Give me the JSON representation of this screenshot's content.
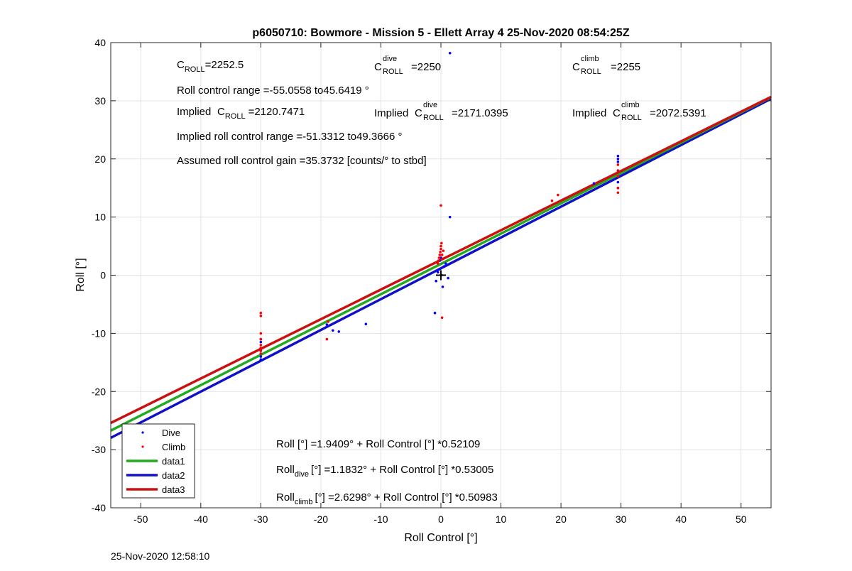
{
  "chart_data": {
    "type": "scatter",
    "title": "p6050710: Bowmore - Mission 5 - Ellett Array 4 25-Nov-2020 08:54:25Z",
    "xlabel": "Roll Control [°]",
    "ylabel": "Roll [°]",
    "xlim": [
      -55,
      55
    ],
    "ylim": [
      -40,
      40
    ],
    "xticks": [
      -50,
      -40,
      -30,
      -20,
      -10,
      0,
      10,
      20,
      30,
      40,
      50
    ],
    "yticks": [
      -40,
      -30,
      -20,
      -10,
      0,
      10,
      20,
      30,
      40
    ],
    "grid": true,
    "legend_position": "bottom-left",
    "colors": {
      "dive": "#0000ff",
      "climb": "#ff0000",
      "data1": "#22aa22",
      "data2": "#1010c8",
      "data3": "#cc1010"
    },
    "series": [
      {
        "name": "Dive",
        "kind": "points",
        "x": [
          -30,
          -30,
          -30,
          -30,
          -30,
          -30,
          -30,
          -19,
          -18,
          -17,
          -12.5,
          -1,
          -0.8,
          -0.5,
          -0.3,
          -0.2,
          0,
          0.1,
          0.3,
          0.5,
          0.8,
          1.2,
          1.5,
          1.5,
          25.5,
          29.5,
          29.5,
          29.5,
          29.5,
          29.5,
          29.5
        ],
        "y": [
          -14.5,
          -14,
          -13.5,
          -13,
          -11.5,
          -11,
          -12.5,
          -8.5,
          -9.5,
          -9.7,
          -8.4,
          -6.5,
          -1,
          0.5,
          1,
          2.5,
          3,
          0,
          -2,
          1.5,
          2,
          -0.5,
          38.2,
          10,
          15.8,
          20.5,
          20,
          19.5,
          18,
          16,
          15
        ]
      },
      {
        "name": "Climb",
        "kind": "points",
        "x": [
          -30,
          -30,
          -30,
          -30,
          -30,
          -30,
          -30,
          -30,
          -19,
          -18.8,
          -0.5,
          -0.4,
          -0.3,
          -0.2,
          -0.1,
          0,
          0,
          0.1,
          0.2,
          0.3,
          0.4,
          0,
          0.2,
          19.5,
          18.5,
          29.5,
          29.5,
          29.5,
          29.5,
          29.5
        ],
        "y": [
          -6.5,
          -7,
          -10,
          -11,
          -12,
          -12.5,
          -13,
          -13.5,
          -11,
          -8,
          2,
          2.5,
          3,
          3.5,
          4,
          4.5,
          5,
          5.5,
          3.5,
          2.8,
          4.2,
          12,
          -7.3,
          13.8,
          12.8,
          19,
          18,
          17,
          15,
          14.2
        ]
      },
      {
        "name": "data1",
        "kind": "line",
        "intercept": 1.9409,
        "slope": 0.52109
      },
      {
        "name": "data2",
        "kind": "line",
        "intercept": 1.1832,
        "slope": 0.53005
      },
      {
        "name": "data3",
        "kind": "line",
        "intercept": 2.6298,
        "slope": 0.50983
      }
    ],
    "marker": {
      "x": 0,
      "y": 0,
      "symbol": "+"
    },
    "annotations": {
      "c_roll": "=2252.5",
      "c_roll_dive": "=2250",
      "c_roll_climb": "=2255",
      "roll_control_range": "Roll control range =-55.0558 to45.6419 °",
      "implied_c_roll": "=2120.7471",
      "implied_c_roll_dive": "=2171.0395",
      "implied_c_roll_climb": "=2072.5391",
      "implied_range": "Implied roll control range =-51.3312 to49.3666 °",
      "gain": "Assumed roll control gain =35.3732 [counts/° to stbd]",
      "fit_all": "Roll [°] =1.9409° + Roll Control [°] *0.52109",
      "fit_dive": "[°] =1.1832° + Roll Control [°] *0.53005",
      "fit_climb": "[°] =2.6298° + Roll Control [°] *0.50983",
      "word_roll": "Roll",
      "word_implied": "Implied",
      "sym_c": "C",
      "sub_roll": "ROLL",
      "sup_dive": "dive",
      "sup_climb": "climb",
      "sub_dive": "dive",
      "sub_climb": "climb"
    },
    "timestamp": "25-Nov-2020 12:58:10"
  }
}
